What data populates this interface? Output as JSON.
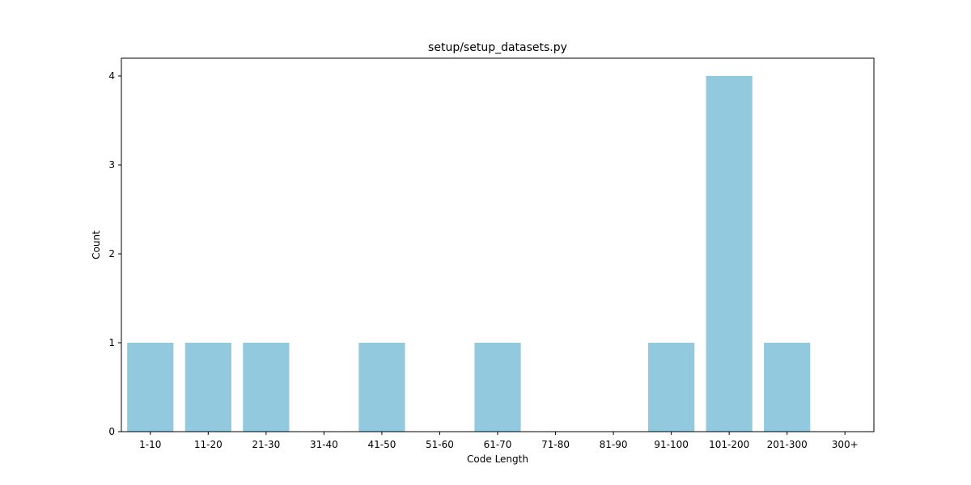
{
  "chart_data": {
    "type": "bar",
    "title": "setup/setup_datasets.py",
    "xlabel": "Code Length",
    "ylabel": "Count",
    "categories": [
      "1-10",
      "11-20",
      "21-30",
      "31-40",
      "41-50",
      "51-60",
      "61-70",
      "71-80",
      "81-90",
      "91-100",
      "101-200",
      "201-300",
      "300+"
    ],
    "values": [
      1,
      1,
      1,
      0,
      1,
      0,
      1,
      0,
      0,
      1,
      4,
      1,
      0
    ],
    "yticks": [
      "0",
      "1",
      "2",
      "3",
      "4"
    ],
    "ylim": [
      0,
      4.2
    ],
    "grid": false,
    "bar_color": "#92c9df"
  }
}
